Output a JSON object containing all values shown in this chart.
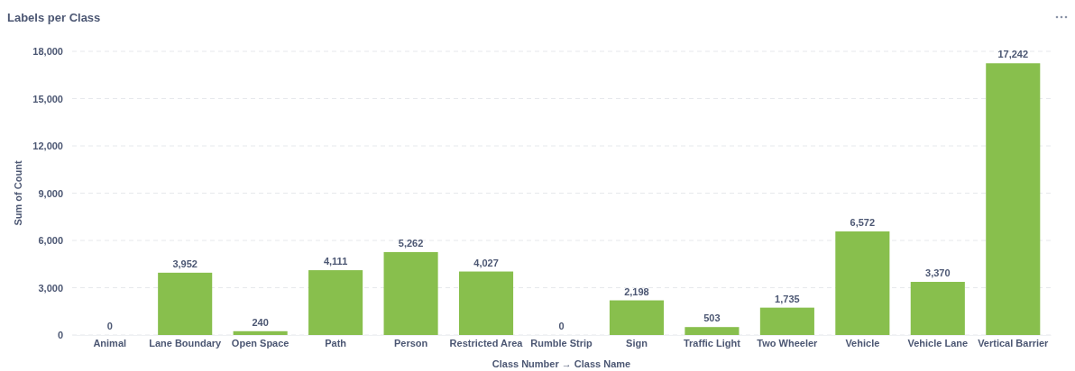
{
  "chart_data": {
    "type": "bar",
    "title": "Labels per Class",
    "xlabel": "Class Number → Class Name",
    "ylabel": "Sum of Count",
    "categories": [
      "Animal",
      "Lane Boundary",
      "Open Space",
      "Path",
      "Person",
      "Restricted Area",
      "Rumble Strip",
      "Sign",
      "Traffic Light",
      "Two Wheeler",
      "Vehicle",
      "Vehicle Lane",
      "Vertical Barrier"
    ],
    "values": [
      0,
      3952,
      240,
      4111,
      5262,
      4027,
      0,
      2198,
      503,
      1735,
      6572,
      3370,
      17242
    ],
    "color": "#88bf4d",
    "ylim": [
      0,
      18000
    ],
    "yticks": [
      {
        "value": 0,
        "label": "0"
      },
      {
        "value": 3000,
        "label": "3,000"
      },
      {
        "value": 6000,
        "label": "6,000"
      },
      {
        "value": 9000,
        "label": "9,000"
      },
      {
        "value": 12000,
        "label": "12,000"
      },
      {
        "value": 15000,
        "label": "15,000"
      },
      {
        "value": 18000,
        "label": "18,000"
      }
    ],
    "grid": "y",
    "value_labels": [
      "0",
      "3,952",
      "240",
      "4,111",
      "5,262",
      "4,027",
      "0",
      "2,198",
      "503",
      "1,735",
      "6,572",
      "3,370",
      "17,242"
    ]
  }
}
